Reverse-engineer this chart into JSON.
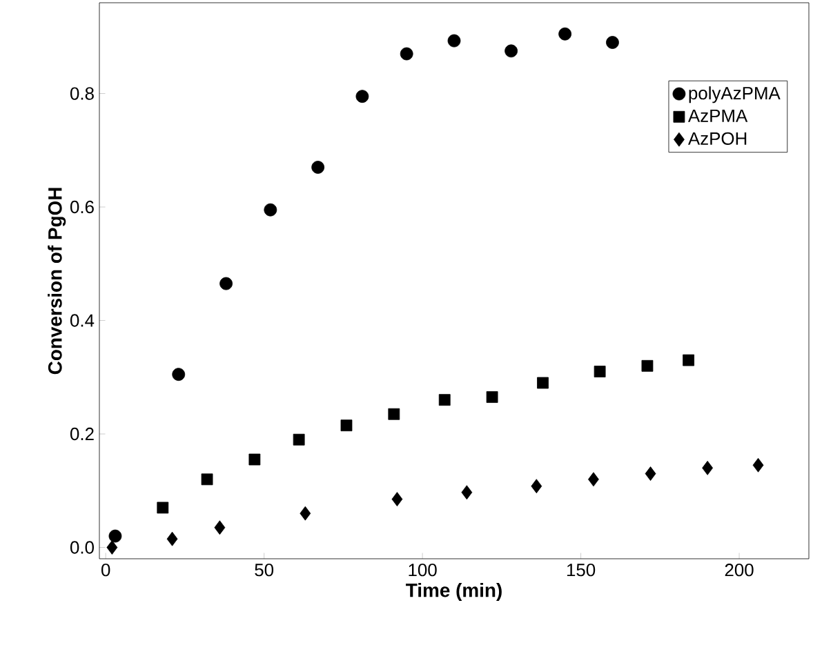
{
  "chart_data": {
    "type": "scatter",
    "xlabel": "Time (min)",
    "ylabel": "Conversion of PgOH",
    "xlim": [
      -2,
      222
    ],
    "ylim": [
      -0.02,
      0.96
    ],
    "xticks": [
      0,
      50,
      100,
      150,
      200
    ],
    "yticks": [
      {
        "value": 0,
        "label": "0.0"
      },
      0.2,
      0.4,
      0.6,
      0.8
    ],
    "legend": "top right",
    "series": [
      {
        "name": "polyAzPMA",
        "color": "#000000",
        "marker": "circle",
        "x": [
          3,
          23,
          38,
          52,
          67,
          81,
          95,
          110,
          128,
          145,
          160
        ],
        "values": [
          0.02,
          0.305,
          0.465,
          0.595,
          0.67,
          0.795,
          0.87,
          0.893,
          0.875,
          0.905,
          0.89
        ]
      },
      {
        "name": "AzPMA",
        "color": "#000000",
        "marker": "square",
        "x": [
          18,
          32,
          47,
          61,
          76,
          91,
          107,
          122,
          138,
          156,
          171,
          184
        ],
        "values": [
          0.07,
          0.12,
          0.155,
          0.19,
          0.215,
          0.235,
          0.26,
          0.265,
          0.29,
          0.31,
          0.32,
          0.33
        ]
      },
      {
        "name": "AzPOH",
        "color": "#000000",
        "marker": "diamond",
        "x": [
          2,
          21,
          36,
          63,
          92,
          114,
          136,
          154,
          172,
          190,
          206
        ],
        "values": [
          0.0,
          0.015,
          0.035,
          0.06,
          0.085,
          0.097,
          0.108,
          0.12,
          0.13,
          0.14,
          0.145
        ]
      }
    ]
  }
}
